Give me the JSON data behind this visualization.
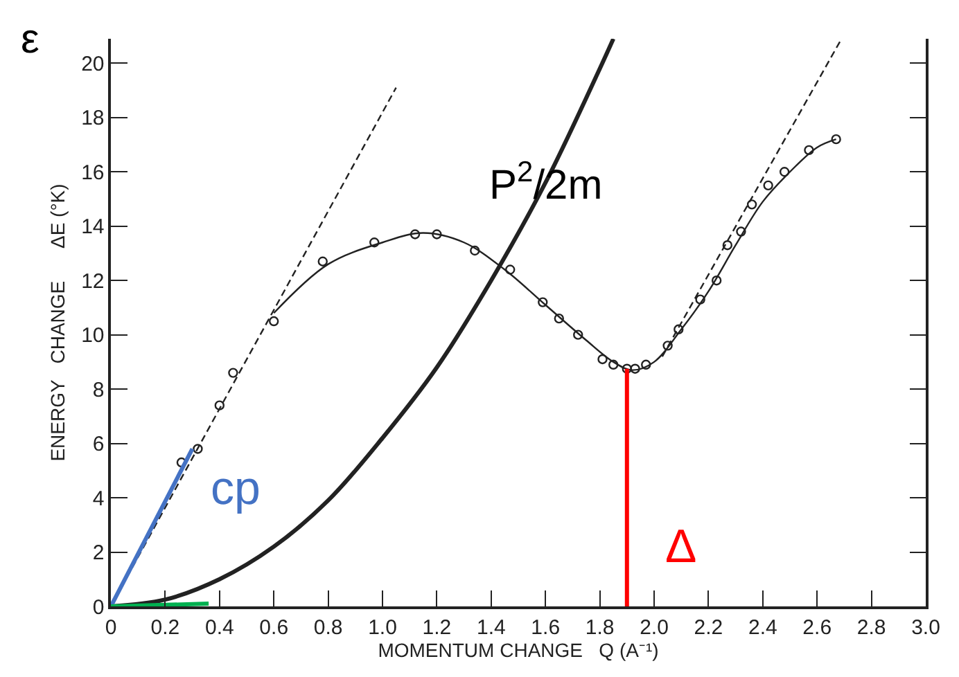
{
  "chart_data": {
    "type": "line",
    "xlabel": "MOMENTUM CHANGE   Q (A⁻¹)",
    "ylabel": "ENERGY   CHANGE      ΔE (°K)",
    "annotations": [
      "ε"
    ],
    "xlim": [
      0,
      3.0
    ],
    "ylim": [
      0,
      20.9
    ],
    "xticks": [
      0,
      0.2,
      0.4,
      0.6,
      0.8,
      {
        "value": 1.0,
        "label": "1.0"
      },
      1.2,
      1.4,
      1.6,
      1.8,
      {
        "value": 2.0,
        "label": "2.0"
      },
      2.2,
      2.4,
      2.6,
      2.8,
      {
        "value": 3.0,
        "label": "3.0"
      }
    ],
    "yticks": [
      0,
      2,
      4,
      6,
      8,
      10,
      12,
      14,
      16,
      18,
      20
    ],
    "grid": false,
    "series": [
      {
        "line_style": "dashed",
        "color": "#222222",
        "x": [
          0,
          1.05
        ],
        "values": [
          0,
          19.1
        ]
      },
      {
        "line_style": "dashed",
        "color": "#222222",
        "x": [
          2.03,
          2.69
        ],
        "values": [
          9.2,
          20.9
        ]
      },
      {
        "line_style": "solid",
        "color": "#222222",
        "x": [
          0.6,
          0.8,
          1.0,
          1.15,
          1.3,
          1.45,
          1.6,
          1.75,
          1.85,
          1.92,
          2.0,
          2.1,
          2.2,
          2.3,
          2.4,
          2.5,
          2.6,
          2.67
        ],
        "values": [
          10.8,
          12.6,
          13.4,
          13.75,
          13.4,
          12.4,
          11.1,
          9.8,
          9.0,
          8.7,
          9.0,
          10.2,
          11.6,
          13.3,
          14.9,
          16.0,
          16.9,
          17.2
        ]
      },
      {
        "line_style": "solid",
        "color": "#222222",
        "name": "P$^{2}$/2m",
        "x": [
          0,
          0.2,
          0.4,
          0.6,
          0.8,
          1.0,
          1.2,
          1.4,
          1.6,
          1.8,
          1.85
        ],
        "values": [
          0,
          0.25,
          1.0,
          2.2,
          3.9,
          6.2,
          8.8,
          12.0,
          15.6,
          19.8,
          20.9
        ]
      },
      {
        "type": "scatter",
        "marker": "circle",
        "color": "#222222",
        "x": [
          0.26,
          0.32,
          0.4,
          0.45,
          0.6,
          0.78,
          0.97,
          1.12,
          1.2,
          1.34,
          1.47,
          1.59,
          1.65,
          1.72,
          1.81,
          1.85,
          1.9,
          1.93,
          1.97,
          2.05,
          2.09,
          2.17,
          2.23,
          2.27,
          2.32,
          2.36,
          2.42,
          2.48,
          2.57,
          2.67
        ],
        "values": [
          5.3,
          5.8,
          7.4,
          8.6,
          10.5,
          12.7,
          13.4,
          13.7,
          13.7,
          13.1,
          12.4,
          11.2,
          10.6,
          10.0,
          9.1,
          8.9,
          8.75,
          8.75,
          8.9,
          9.6,
          10.2,
          11.3,
          12.0,
          13.3,
          13.8,
          14.8,
          15.5,
          16.0,
          16.8,
          17.2
        ]
      },
      {
        "line_style": "solid",
        "color": "#4472c4",
        "name": "cp",
        "x": [
          0,
          0.3
        ],
        "values": [
          0,
          5.8
        ]
      },
      {
        "line_style": "solid",
        "color": "#00b050",
        "x": [
          0,
          0.36
        ],
        "values": [
          0,
          0.1
        ]
      },
      {
        "line_style": "solid",
        "color": "#ff0000",
        "name": "Δ",
        "x": [
          1.9,
          1.9
        ],
        "values": [
          8.75,
          0
        ]
      }
    ]
  }
}
